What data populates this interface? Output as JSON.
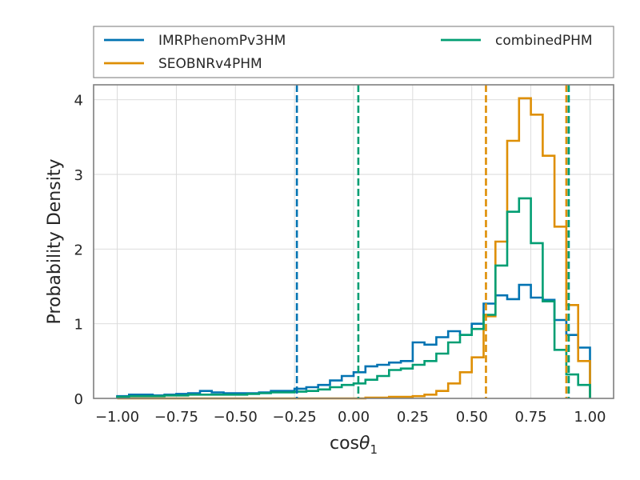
{
  "chart_data": {
    "type": "line",
    "style": "step histogram (density) with dashed vertical credible-interval lines",
    "xlabel_main": "cos",
    "xlabel_symbol": "θ",
    "xlabel_sub": "1",
    "ylabel": "Probability Density",
    "xlim": [
      -1.1,
      1.1
    ],
    "ylim": [
      0,
      4.2
    ],
    "xticks": [
      -1.0,
      -0.75,
      -0.5,
      -0.25,
      0.0,
      0.25,
      0.5,
      0.75,
      1.0
    ],
    "xtick_labels": [
      "−1.00",
      "−0.75",
      "−0.50",
      "−0.25",
      "0.00",
      "0.25",
      "0.50",
      "0.75",
      "1.00"
    ],
    "yticks": [
      0,
      1,
      2,
      3,
      4
    ],
    "ytick_labels": [
      "0",
      "1",
      "2",
      "3",
      "4"
    ],
    "grid": true,
    "legend_position": "above plot, two columns",
    "bin_edges": [
      -1.0,
      -0.95,
      -0.9,
      -0.85,
      -0.8,
      -0.75,
      -0.7,
      -0.65,
      -0.6,
      -0.55,
      -0.5,
      -0.45,
      -0.4,
      -0.35,
      -0.3,
      -0.25,
      -0.2,
      -0.15,
      -0.1,
      -0.05,
      0.0,
      0.05,
      0.1,
      0.15,
      0.2,
      0.25,
      0.3,
      0.35,
      0.4,
      0.45,
      0.5,
      0.55,
      0.6,
      0.65,
      0.7,
      0.75,
      0.8,
      0.85,
      0.9,
      0.95,
      1.0
    ],
    "series": [
      {
        "name": "IMRPhenomPv3HM",
        "color": "#0173b2",
        "values": [
          0.03,
          0.05,
          0.05,
          0.04,
          0.05,
          0.06,
          0.07,
          0.1,
          0.08,
          0.07,
          0.07,
          0.07,
          0.08,
          0.1,
          0.1,
          0.13,
          0.15,
          0.18,
          0.24,
          0.3,
          0.35,
          0.43,
          0.45,
          0.48,
          0.5,
          0.75,
          0.72,
          0.82,
          0.9,
          0.85,
          1.0,
          1.27,
          1.38,
          1.33,
          1.52,
          1.35,
          1.32,
          1.05,
          0.85,
          0.68,
          0.33
        ],
        "ci_lines": [
          -0.24,
          0.91
        ]
      },
      {
        "name": "SEOBNRv4PHM",
        "color": "#de8f05",
        "values": [
          0.0,
          0.0,
          0.0,
          0.0,
          0.0,
          0.0,
          0.0,
          0.0,
          0.0,
          0.0,
          0.0,
          0.0,
          0.0,
          0.0,
          0.0,
          0.0,
          0.0,
          0.0,
          0.0,
          0.0,
          0.0,
          0.01,
          0.01,
          0.02,
          0.02,
          0.03,
          0.05,
          0.1,
          0.2,
          0.35,
          0.55,
          1.1,
          2.1,
          3.45,
          4.02,
          3.8,
          3.25,
          2.3,
          1.25,
          0.5,
          0.02
        ],
        "ci_lines": [
          0.56,
          0.9
        ]
      },
      {
        "name": "combinedPHM",
        "color": "#029e73",
        "values": [
          0.02,
          0.03,
          0.03,
          0.03,
          0.04,
          0.04,
          0.05,
          0.05,
          0.05,
          0.05,
          0.05,
          0.06,
          0.07,
          0.08,
          0.08,
          0.09,
          0.1,
          0.12,
          0.15,
          0.18,
          0.2,
          0.25,
          0.3,
          0.38,
          0.4,
          0.45,
          0.5,
          0.6,
          0.75,
          0.85,
          0.93,
          1.12,
          1.78,
          2.5,
          2.68,
          2.08,
          1.3,
          0.65,
          0.32,
          0.18,
          0.1
        ],
        "ci_lines": [
          0.02,
          0.91
        ]
      }
    ]
  }
}
